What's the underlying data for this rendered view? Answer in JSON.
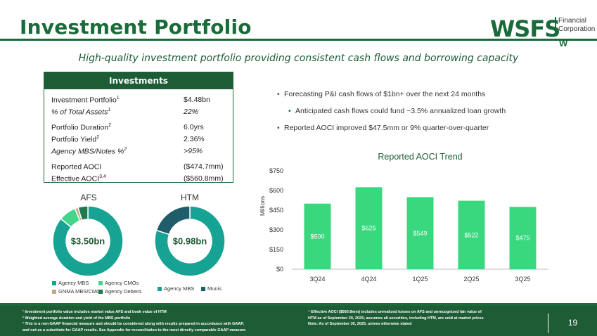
{
  "header": {
    "title": "Investment Portfolio",
    "subtitle": "High-quality investment portfolio providing consistent cash flows and borrowing capacity",
    "logo_word": "WSFS",
    "logo_line1": "Financial",
    "logo_line2": "Corporation",
    "logo_mark": "W"
  },
  "investments": {
    "header": "Investments",
    "rows": [
      {
        "label": "Investment Portfolio",
        "sup": "1",
        "value": "$4.48bn",
        "italic": false
      },
      {
        "label": "% of Total Assets",
        "sup": "1",
        "value": "22%",
        "italic": true
      },
      {
        "label": "Portfolio Duration",
        "sup": "2",
        "value": "6.0yrs",
        "italic": false
      },
      {
        "label": "Portfolio Yield",
        "sup": "2",
        "value": "2.36%",
        "italic": false
      },
      {
        "label": "Agency MBS/Notes %",
        "sup": "2",
        "value": ">95%",
        "italic": true
      },
      {
        "label": "Reported AOCI",
        "sup": "",
        "value": "($474.7mm)",
        "italic": false
      },
      {
        "label": "Effective AOCI",
        "sup": "3,4",
        "value": "($560.8mm)",
        "italic": false
      }
    ]
  },
  "bullets": [
    {
      "text": "Forecasting P&I cash flows of $1bn+ over the next 24 months",
      "level": 1
    },
    {
      "text": "Anticipated cash flows could fund ~3.5% annualized loan growth",
      "level": 2
    },
    {
      "text": "Reported AOCI improved $47.5mm or 9% quarter-over-quarter",
      "level": 1
    }
  ],
  "donuts": {
    "afs": {
      "label": "AFS",
      "center": "$3.50bn",
      "segments": [
        {
          "name": "Agency MBS",
          "value": 86,
          "color": "#17a394"
        },
        {
          "name": "Agency CMOs",
          "value": 8,
          "color": "#43d68a"
        },
        {
          "name": "GNMA MBS/CMOs",
          "value": 1.5,
          "color": "#c2a887"
        },
        {
          "name": "Agency Debent.",
          "value": 4.5,
          "color": "#1e7a4c"
        }
      ]
    },
    "htm": {
      "label": "HTM",
      "center": "$0.98bn",
      "segments": [
        {
          "name": "Agency MBS",
          "value": 80,
          "color": "#17a394"
        },
        {
          "name": "Munis",
          "value": 20,
          "color": "#1f5d6a"
        }
      ]
    }
  },
  "chart_data": {
    "type": "bar",
    "title": "Reported AOCI Trend",
    "ylabel": "Millions",
    "xlabel": "",
    "categories": [
      "3Q24",
      "4Q24",
      "1Q25",
      "2Q25",
      "3Q25"
    ],
    "values": [
      500,
      625,
      549,
      522,
      475
    ],
    "value_labels": [
      "$500",
      "$625",
      "$549",
      "$522",
      "$475"
    ],
    "ylim": [
      0,
      750
    ],
    "yticks": [
      0,
      150,
      300,
      450,
      600,
      750
    ],
    "ytick_labels": [
      "$0",
      "$150",
      "$300",
      "$450",
      "$600",
      "$750"
    ],
    "bar_color": "#39d77e",
    "grid": false
  },
  "footnotes": {
    "left": [
      "¹ Investment portfolio value includes market value AFS and book value of HTM",
      "² Weighted average duration and yield of the MBS portfolio",
      "³ This is a non-GAAP financial measure and should be considered along with results prepared in accordance with GAAP,",
      "and not as a substitute for GAAP results. See Appendix for reconciliation to the most directly comparable GAAP measure"
    ],
    "right": [
      "⁴ Effective AOCI ($560.8mm) includes unrealized losses on AFS and unrecognized fair value of",
      "HTM as of September 30, 2025; assumes all securities, including HTM, are sold at market prices",
      "Note: As of September 30, 2025, unless otherwise stated"
    ]
  },
  "page_number": "19"
}
